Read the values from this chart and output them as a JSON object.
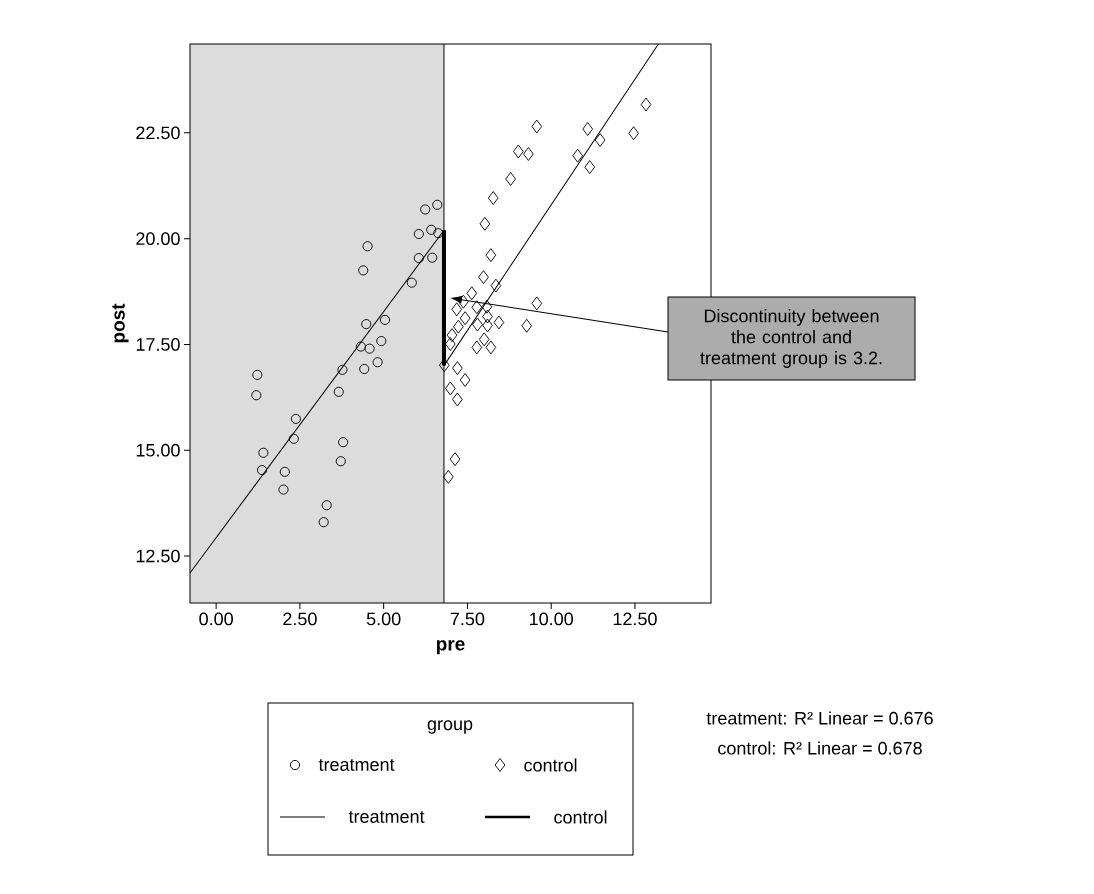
{
  "chart_data": {
    "type": "scatter",
    "xlabel": "pre",
    "ylabel": "post",
    "legend_title": "group",
    "legend": "bottom",
    "xlim": [
      -0.78,
      14.77
    ],
    "ylim": [
      11.39,
      24.6
    ],
    "xticks": [
      {
        "value": 0,
        "label": "0.00"
      },
      {
        "value": 2.5,
        "label": "2.50"
      },
      {
        "value": 5,
        "label": "5.00"
      },
      {
        "value": 7.5,
        "label": "7.50"
      },
      {
        "value": 10,
        "label": "10.00"
      },
      {
        "value": 12.5,
        "label": "12.50"
      }
    ],
    "yticks": [
      {
        "value": 12.5,
        "label": "12.50"
      },
      {
        "value": 15,
        "label": "15.00"
      },
      {
        "value": 17.5,
        "label": "17.50"
      },
      {
        "value": 20,
        "label": "20.00"
      },
      {
        "value": 22.5,
        "label": "22.50"
      }
    ],
    "bands": [
      {
        "axis": "x",
        "from": -0.78,
        "to": 6.8,
        "color": "#dcdcdc"
      }
    ],
    "ref_lines": [
      {
        "axis": "x",
        "value": 6.8
      }
    ],
    "series": [
      {
        "name": "treatment",
        "type": "scatter",
        "marker": "circle",
        "color": "#000000",
        "x": [
          5.84,
          4.48,
          5.04,
          4.93,
          4.32,
          4.58,
          4.82,
          4.42,
          3.77,
          3.66,
          1.23,
          1.2,
          2.38,
          2.32,
          3.79,
          3.72,
          1.41,
          1.37,
          2.05,
          2.01,
          3.3,
          3.21,
          6.6,
          6.24,
          6.42,
          6.05,
          6.63,
          4.52,
          4.39,
          6.05,
          6.45
        ],
        "values": [
          18.96,
          17.98,
          18.08,
          17.58,
          17.45,
          17.4,
          17.08,
          16.92,
          16.9,
          16.38,
          16.78,
          16.3,
          15.74,
          15.27,
          15.19,
          14.74,
          14.94,
          14.53,
          14.49,
          14.07,
          13.7,
          13.3,
          20.8,
          20.69,
          20.21,
          20.11,
          20.13,
          19.82,
          19.25,
          19.54,
          19.55
        ]
      },
      {
        "name": "control",
        "type": "scatter",
        "marker": "diamond",
        "color": "#000000",
        "x": [
          12.83,
          9.57,
          11.09,
          12.46,
          11.46,
          9.02,
          9.32,
          10.79,
          11.15,
          8.79,
          8.27,
          8.02,
          8.2,
          7.98,
          8.35,
          9.57,
          7.18,
          7.78,
          8.08,
          7.43,
          8.1,
          8.44,
          7.8,
          8.1,
          7.23,
          9.27,
          7.04,
          6.99,
          8.0,
          7.78,
          8.2,
          6.81,
          7.2,
          7.43,
          6.99,
          7.2,
          7.13,
          6.93,
          7.63,
          7.38
        ],
        "values": [
          23.17,
          22.65,
          22.59,
          22.49,
          22.33,
          22.06,
          22.0,
          21.96,
          21.69,
          21.41,
          20.96,
          20.35,
          19.61,
          19.09,
          18.89,
          18.47,
          18.33,
          18.38,
          18.39,
          18.12,
          18.16,
          18.02,
          17.97,
          17.95,
          17.92,
          17.94,
          17.72,
          17.51,
          17.62,
          17.43,
          17.43,
          17.01,
          16.94,
          16.66,
          16.46,
          16.2,
          14.79,
          14.37,
          18.71,
          18.51
        ]
      },
      {
        "name": "treatment",
        "type": "line",
        "line_style": "solid",
        "color": "#000000",
        "x": [
          -0.78,
          6.8
        ],
        "values": [
          12.1,
          20.2
        ]
      },
      {
        "name": "control",
        "type": "line",
        "line_style": "solid",
        "color": "#000000",
        "x": [
          6.8,
          13.2
        ],
        "values": [
          17.0,
          24.6
        ]
      },
      {
        "type": "line",
        "line_style": "solid",
        "color": "#000000",
        "x": [
          6.8,
          6.8
        ],
        "values": [
          17.0,
          20.2
        ]
      }
    ],
    "annotations": [
      "Discontinuity between the control and treatment group is 3.2.",
      "treatment: R² Linear = 0.676",
      "control: R² Linear = 0.678"
    ]
  }
}
